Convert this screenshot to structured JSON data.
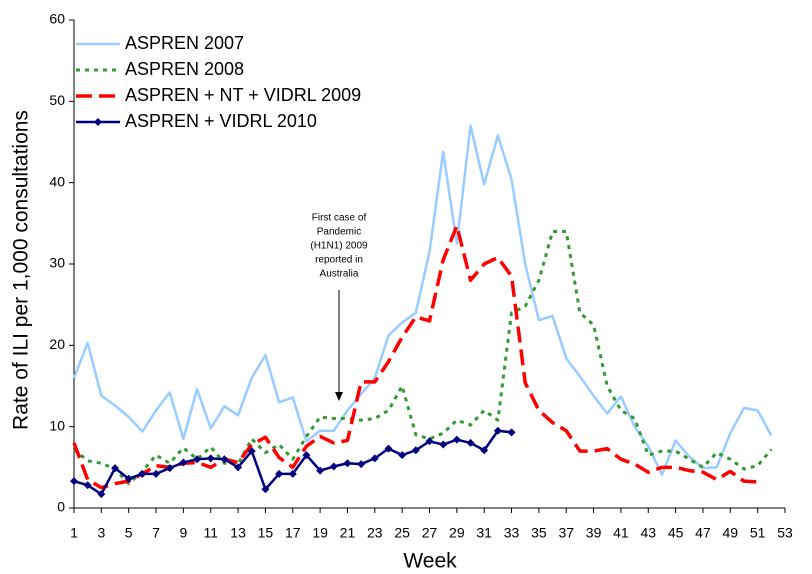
{
  "chart_data": {
    "type": "line",
    "x_label": "Week",
    "y_label": "Rate of ILI per 1,000 consultations",
    "annotation": [
      "First case of",
      "Pandemic",
      "(H1N1) 2009",
      "reported in",
      "Australia"
    ],
    "x": [
      1,
      2,
      3,
      4,
      5,
      6,
      7,
      8,
      9,
      10,
      11,
      12,
      13,
      14,
      15,
      16,
      17,
      18,
      19,
      20,
      21,
      22,
      23,
      24,
      25,
      26,
      27,
      28,
      29,
      30,
      31,
      32,
      33,
      34,
      35,
      36,
      37,
      38,
      39,
      40,
      41,
      42,
      43,
      44,
      45,
      46,
      47,
      48,
      49,
      50,
      51,
      52
    ],
    "xlim": [
      1,
      53
    ],
    "xticks": [
      1,
      3,
      5,
      7,
      9,
      11,
      13,
      15,
      17,
      19,
      21,
      23,
      25,
      27,
      29,
      31,
      33,
      35,
      37,
      39,
      41,
      43,
      45,
      47,
      49,
      51,
      53
    ],
    "ylim": [
      0,
      60
    ],
    "yticks": [
      0,
      10,
      20,
      30,
      40,
      50,
      60
    ],
    "legend": "top-left",
    "series": [
      {
        "name": "ASPREN 2007",
        "color": "#99ccff",
        "style": "solid",
        "markers": false,
        "values": [
          16,
          20.3,
          13.8,
          12.6,
          11.2,
          9.4,
          12,
          14.2,
          8.5,
          14.6,
          9.8,
          12.5,
          11.4,
          16,
          18.8,
          13,
          13.6,
          8.2,
          9.5,
          9.5,
          12,
          14,
          16,
          21.2,
          22.8,
          24,
          31.5,
          43.8,
          32.5,
          47,
          39.8,
          45.8,
          40.4,
          30,
          23.1,
          23.6,
          18.4,
          16.2,
          13.8,
          11.6,
          13.7,
          10,
          7.6,
          4.1,
          8.3,
          6.3,
          4.9,
          5,
          9.2,
          12.3,
          12,
          8.9
        ]
      },
      {
        "name": "ASPREN 2008",
        "color": "#339933",
        "style": "dotted",
        "markers": false,
        "values": [
          7.2,
          5.8,
          5.5,
          4.8,
          3,
          4.5,
          6.5,
          5.5,
          7.4,
          6,
          7.5,
          5.5,
          5.4,
          8.5,
          6.8,
          7.8,
          6,
          8.8,
          11.2,
          11,
          11,
          10.8,
          11,
          12,
          15,
          9,
          8.5,
          9.2,
          10.8,
          10.2,
          12,
          10.8,
          24,
          24.8,
          28,
          34,
          34,
          24,
          22.5,
          15,
          12,
          11,
          6.5,
          7,
          7,
          6,
          5,
          6.8,
          6,
          4.8,
          5.2,
          7.2
        ]
      },
      {
        "name": "ASPREN + NT + VIDRL 2009",
        "color": "#ff0000",
        "style": "dashed",
        "markers": false,
        "values": [
          8,
          3.5,
          2.5,
          3,
          3.3,
          4.2,
          5.2,
          5,
          5.5,
          5.6,
          5,
          6,
          5.6,
          7.8,
          8.7,
          6.2,
          5,
          7.6,
          8.8,
          8,
          8.3,
          15.5,
          15.5,
          18,
          21,
          23.5,
          23,
          30.5,
          34.7,
          28,
          30,
          30.8,
          28.5,
          15.4,
          12,
          10.5,
          9.5,
          7,
          7,
          7.3,
          6,
          5.4,
          4.4,
          5,
          5,
          4.6,
          4.4,
          3.5,
          4.5,
          3.3,
          3.2,
          null
        ]
      },
      {
        "name": "ASPREN + VIDRL 2010",
        "color": "#000080",
        "style": "solid",
        "markers": true,
        "values": [
          3.3,
          2.8,
          1.7,
          4.9,
          3.6,
          4.2,
          4.2,
          4.9,
          5.6,
          6,
          6.1,
          6,
          5,
          7,
          2.3,
          4.2,
          4.2,
          6.5,
          4.6,
          5.1,
          5.5,
          5.4,
          6.1,
          7.3,
          6.5,
          7.1,
          8.2,
          7.8,
          8.4,
          8,
          7.1,
          9.5,
          9.3,
          null,
          null,
          null,
          null,
          null,
          null,
          null,
          null,
          null,
          null,
          null,
          null,
          null,
          null,
          null,
          null,
          null,
          null,
          null
        ]
      }
    ]
  }
}
